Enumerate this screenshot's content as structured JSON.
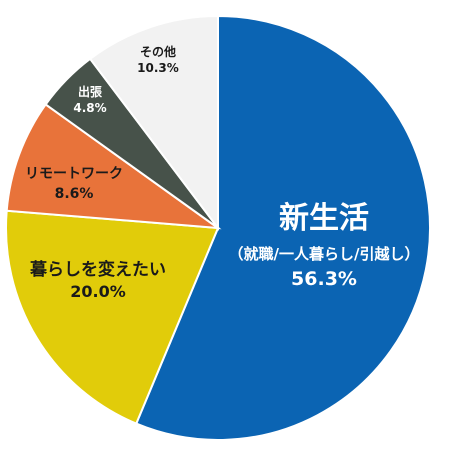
{
  "chart_data": {
    "type": "pie",
    "title": "",
    "start": "12 o'clock",
    "direction": "clockwise",
    "slices": [
      {
        "label": "新生活",
        "sublabel": "（就職/一人暮らし/引越し）",
        "value": 56.3,
        "value_text": "56.3%",
        "color": "#0b64b3",
        "text_color": "#ffffff"
      },
      {
        "label": "暮らしを変えたい",
        "value": 20.0,
        "value_text": "20.0%",
        "color": "#e1cc0a",
        "text_color": "#1a1a1a"
      },
      {
        "label": "リモートワーク",
        "value": 8.6,
        "value_text": "8.6%",
        "color": "#e8733a",
        "text_color": "#1a1a1a"
      },
      {
        "label": "出張",
        "value": 4.8,
        "value_text": "4.8%",
        "color": "#47524a",
        "text_color": "#ffffff"
      },
      {
        "label": "その他",
        "value": 10.3,
        "value_text": "10.3%",
        "color": "#f2f2f2",
        "text_color": "#1a1a1a"
      }
    ]
  }
}
